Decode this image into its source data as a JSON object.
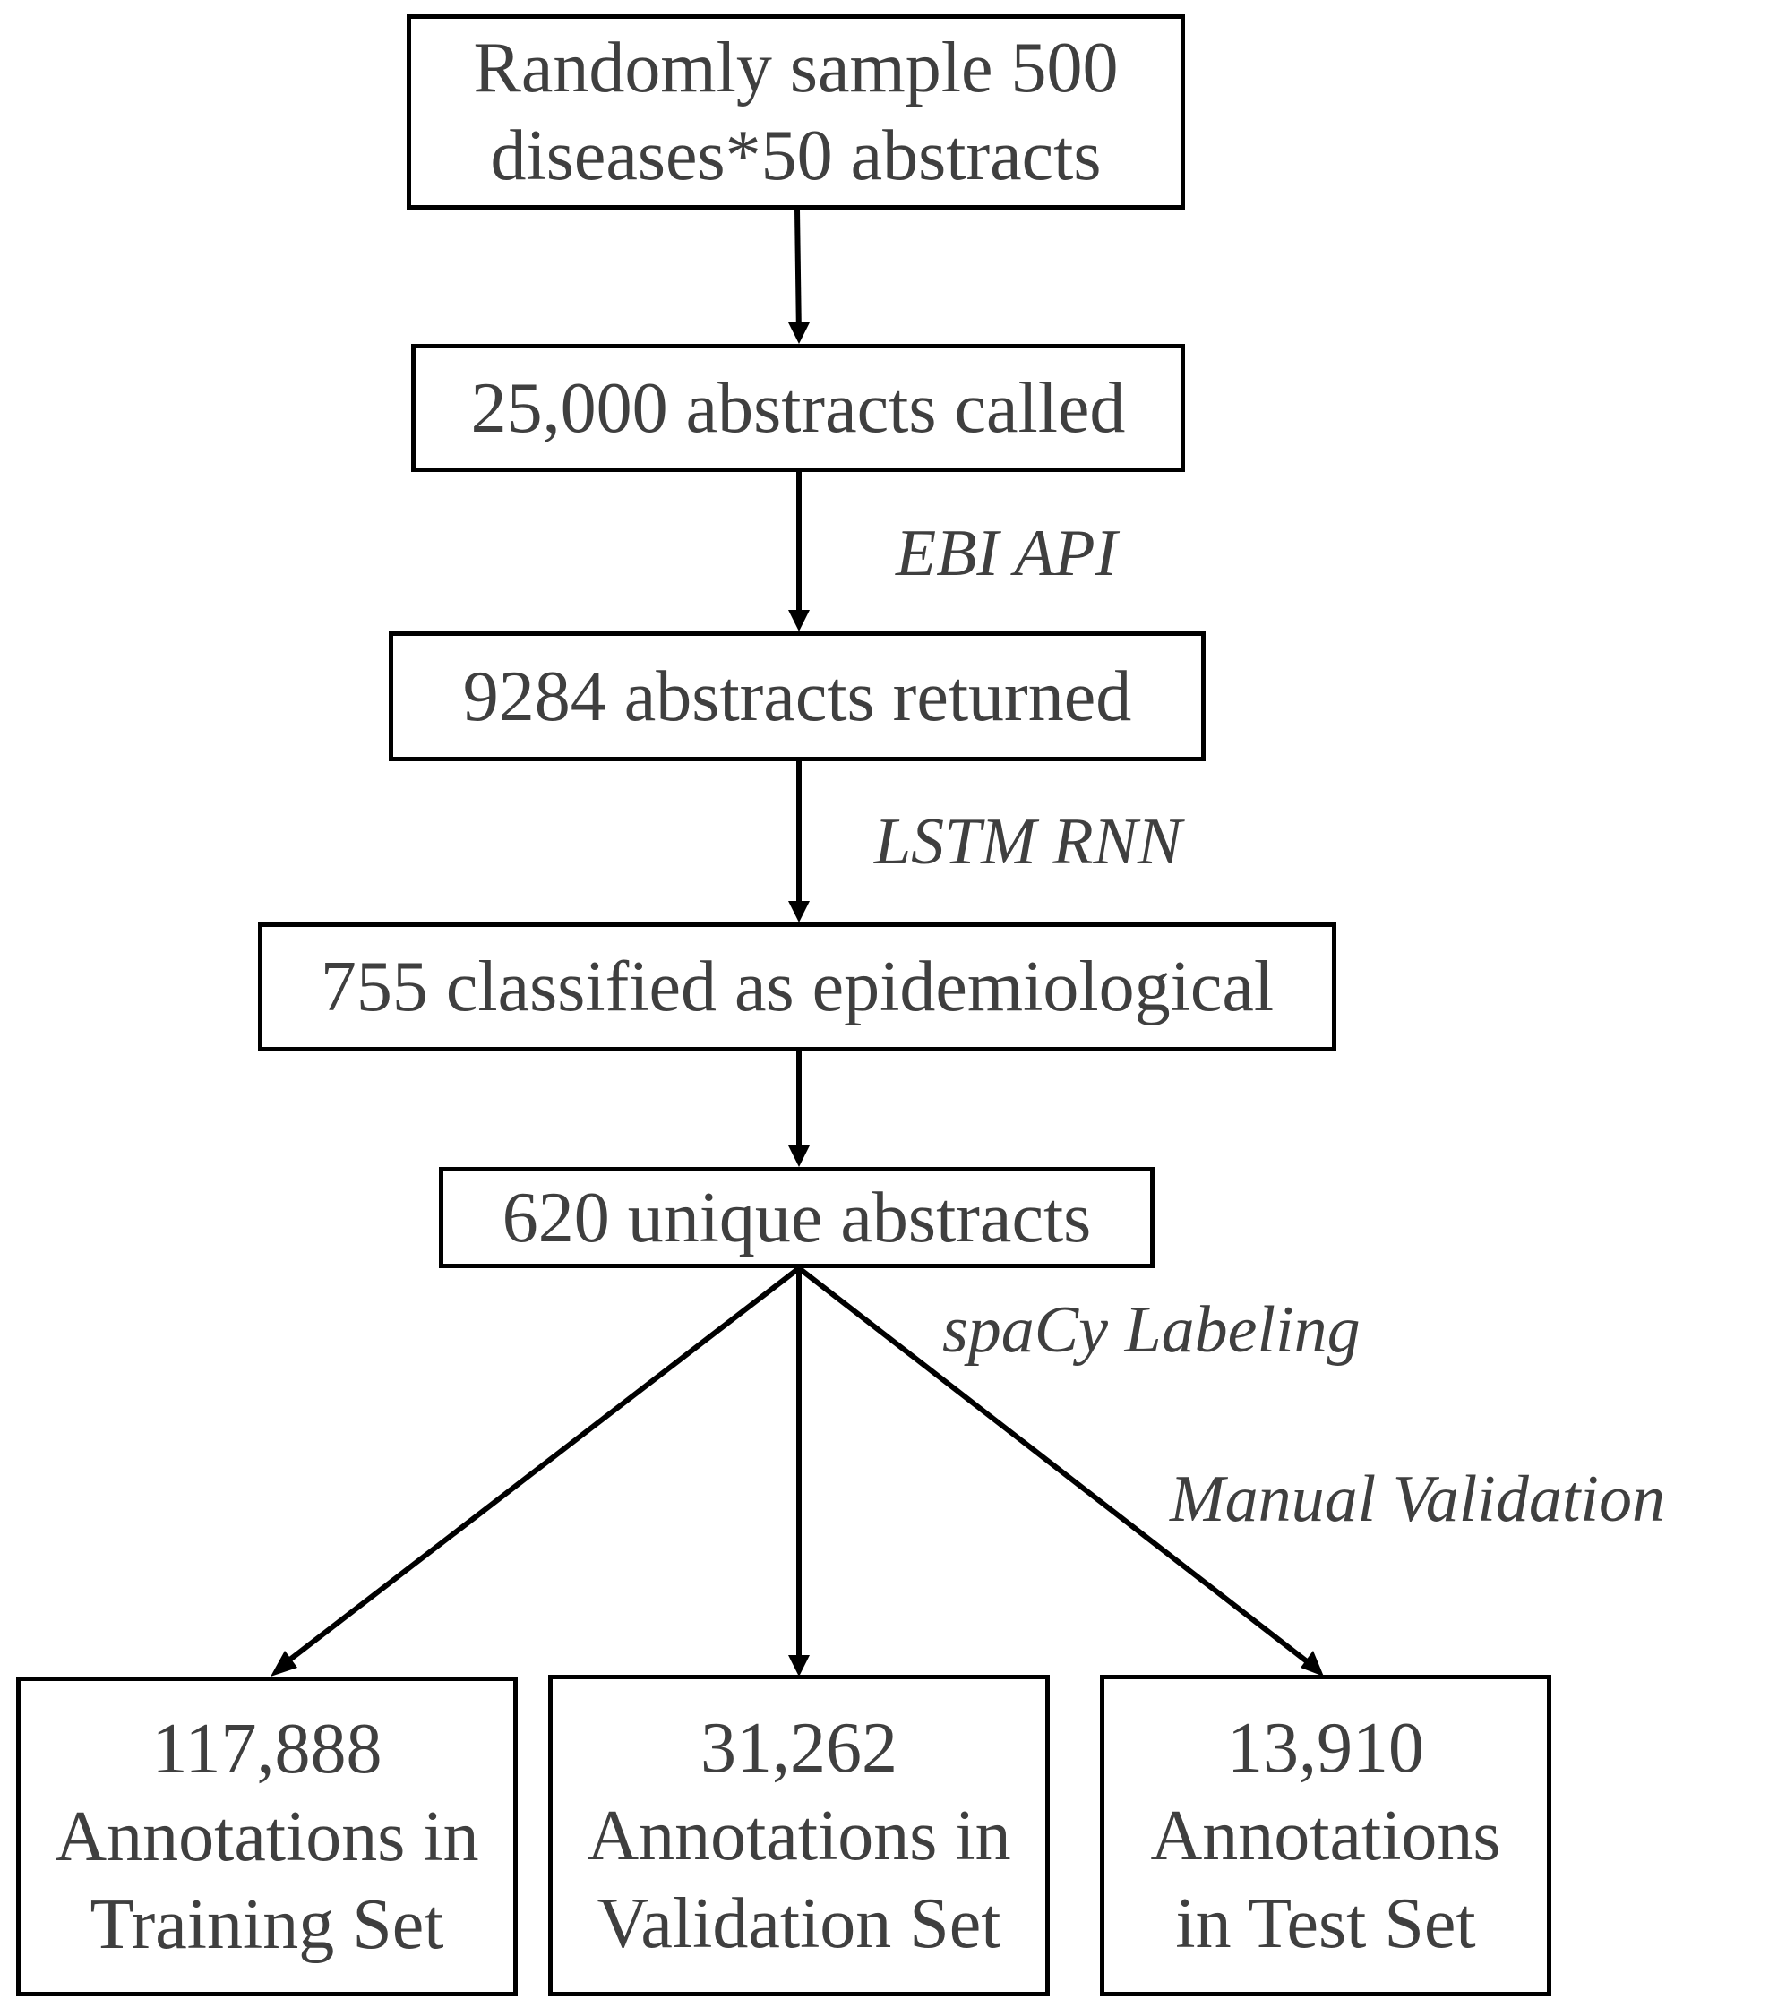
{
  "nodes": {
    "sample": {
      "line1": "Randomly sample 500",
      "line2": "diseases*50 abstracts"
    },
    "called": {
      "text": "25,000 abstracts called"
    },
    "returned": {
      "text": "9284 abstracts returned"
    },
    "classified": {
      "text": "755 classified as epidemiological"
    },
    "unique": {
      "text": "620 unique abstracts"
    },
    "training": {
      "line1": "117,888",
      "line2": "Annotations in",
      "line3": "Training Set"
    },
    "validation": {
      "line1": "31,262",
      "line2": "Annotations in",
      "line3": "Validation Set"
    },
    "test": {
      "line1": "13,910",
      "line2": "Annotations",
      "line3": "in Test Set"
    }
  },
  "edge_labels": {
    "ebi_api": "EBI API",
    "lstm_rnn": "LSTM RNN",
    "spacy": "spaCy Labeling",
    "manual": "Manual Validation"
  }
}
